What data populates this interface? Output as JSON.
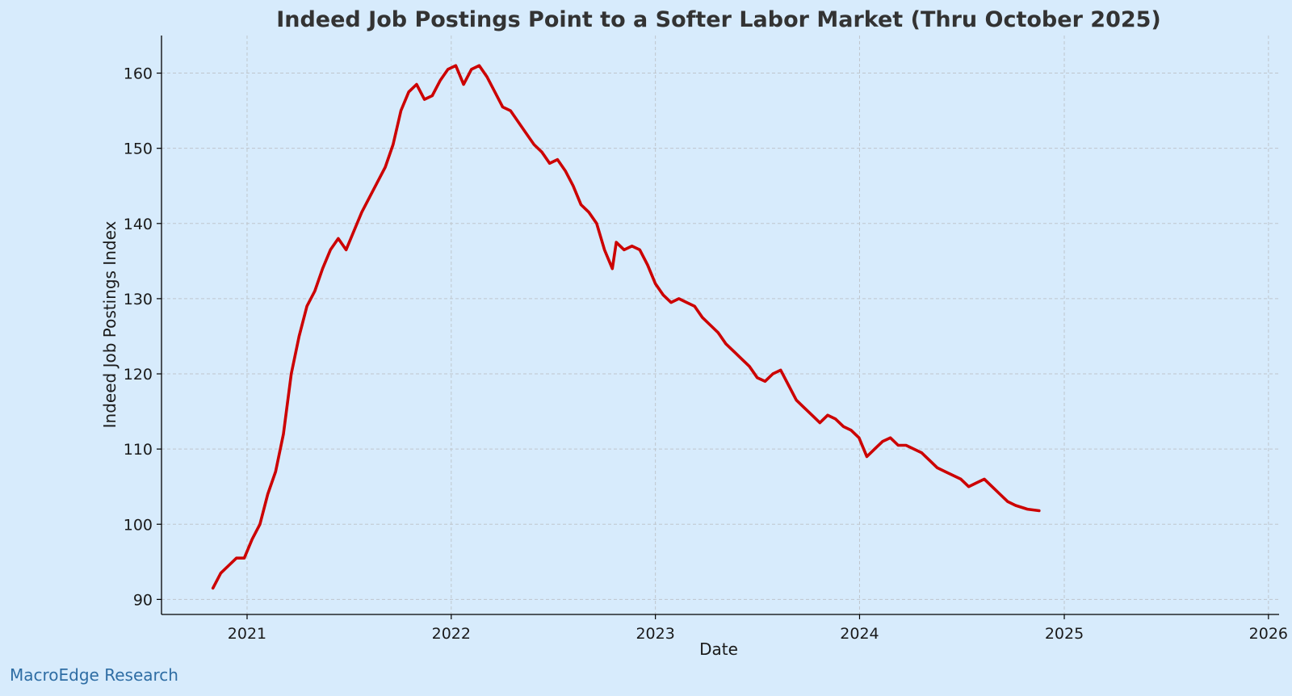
{
  "chart_data": {
    "type": "line",
    "title": "Indeed Job Postings Point to a Softer Labor Market (Thru October 2025)",
    "xlabel": "Date",
    "ylabel": "Indeed Job Postings Index",
    "xlim": [
      "2020-08-01",
      "2026-01-20"
    ],
    "ylim": [
      88,
      165
    ],
    "x_ticks": [
      "2021",
      "2022",
      "2023",
      "2024",
      "2025",
      "2026"
    ],
    "y_ticks": [
      90,
      100,
      110,
      120,
      130,
      140,
      150,
      160
    ],
    "grid": true,
    "legend": "none",
    "colors": {
      "background": "#d7ebfc",
      "series": "#cc0000"
    },
    "series": [
      {
        "points": [
          [
            "2020-11-01",
            91.5
          ],
          [
            "2020-11-15",
            93.5
          ],
          [
            "2020-11-29",
            94.5
          ],
          [
            "2020-12-13",
            95.5
          ],
          [
            "2020-12-27",
            95.5
          ],
          [
            "2021-01-10",
            98.0
          ],
          [
            "2021-01-24",
            100.0
          ],
          [
            "2021-02-07",
            104.0
          ],
          [
            "2021-02-21",
            107.0
          ],
          [
            "2021-03-07",
            112.0
          ],
          [
            "2021-03-21",
            120.0
          ],
          [
            "2021-04-04",
            125.0
          ],
          [
            "2021-04-18",
            129.0
          ],
          [
            "2021-05-02",
            131.0
          ],
          [
            "2021-05-16",
            134.0
          ],
          [
            "2021-05-30",
            136.5
          ],
          [
            "2021-06-13",
            138.0
          ],
          [
            "2021-06-27",
            136.5
          ],
          [
            "2021-07-11",
            139.0
          ],
          [
            "2021-07-25",
            141.5
          ],
          [
            "2021-08-08",
            143.5
          ],
          [
            "2021-08-22",
            145.5
          ],
          [
            "2021-09-05",
            147.5
          ],
          [
            "2021-09-19",
            150.5
          ],
          [
            "2021-10-03",
            155.0
          ],
          [
            "2021-10-17",
            157.5
          ],
          [
            "2021-10-31",
            158.5
          ],
          [
            "2021-11-14",
            156.5
          ],
          [
            "2021-11-28",
            157.0
          ],
          [
            "2021-12-12",
            159.0
          ],
          [
            "2021-12-26",
            160.5
          ],
          [
            "2022-01-09",
            161.0
          ],
          [
            "2022-01-23",
            158.5
          ],
          [
            "2022-02-06",
            160.5
          ],
          [
            "2022-02-20",
            161.0
          ],
          [
            "2022-03-06",
            159.5
          ],
          [
            "2022-03-20",
            157.5
          ],
          [
            "2022-04-03",
            155.5
          ],
          [
            "2022-04-17",
            155.0
          ],
          [
            "2022-05-01",
            153.5
          ],
          [
            "2022-05-15",
            152.0
          ],
          [
            "2022-05-29",
            150.5
          ],
          [
            "2022-06-12",
            149.5
          ],
          [
            "2022-06-26",
            148.0
          ],
          [
            "2022-07-10",
            148.5
          ],
          [
            "2022-07-24",
            147.0
          ],
          [
            "2022-08-07",
            145.0
          ],
          [
            "2022-08-21",
            142.5
          ],
          [
            "2022-09-04",
            141.5
          ],
          [
            "2022-09-18",
            140.0
          ],
          [
            "2022-10-02",
            136.5
          ],
          [
            "2022-10-16",
            134.0
          ],
          [
            "2022-10-23",
            137.5
          ],
          [
            "2022-11-06",
            136.5
          ],
          [
            "2022-11-20",
            137.0
          ],
          [
            "2022-12-04",
            136.5
          ],
          [
            "2022-12-18",
            134.5
          ],
          [
            "2023-01-01",
            132.0
          ],
          [
            "2023-01-15",
            130.5
          ],
          [
            "2023-01-29",
            129.5
          ],
          [
            "2023-02-12",
            130.0
          ],
          [
            "2023-02-26",
            129.5
          ],
          [
            "2023-03-12",
            129.0
          ],
          [
            "2023-03-26",
            127.5
          ],
          [
            "2023-04-09",
            126.5
          ],
          [
            "2023-04-23",
            125.5
          ],
          [
            "2023-05-07",
            124.0
          ],
          [
            "2023-05-21",
            123.0
          ],
          [
            "2023-06-04",
            122.0
          ],
          [
            "2023-06-18",
            121.0
          ],
          [
            "2023-07-02",
            119.5
          ],
          [
            "2023-07-16",
            119.0
          ],
          [
            "2023-07-30",
            120.0
          ],
          [
            "2023-08-13",
            120.5
          ],
          [
            "2023-08-27",
            118.5
          ],
          [
            "2023-09-10",
            116.5
          ],
          [
            "2023-09-24",
            115.5
          ],
          [
            "2023-10-08",
            114.5
          ],
          [
            "2023-10-22",
            113.5
          ],
          [
            "2023-11-05",
            114.5
          ],
          [
            "2023-11-19",
            114.0
          ],
          [
            "2023-12-03",
            113.0
          ],
          [
            "2023-12-17",
            112.5
          ],
          [
            "2023-12-31",
            111.5
          ],
          [
            "2024-01-14",
            109.0
          ],
          [
            "2024-01-28",
            110.0
          ],
          [
            "2024-02-11",
            111.0
          ],
          [
            "2024-02-25",
            111.5
          ],
          [
            "2024-03-10",
            110.5
          ],
          [
            "2024-03-24",
            110.5
          ],
          [
            "2024-04-07",
            110.0
          ],
          [
            "2024-04-21",
            109.5
          ],
          [
            "2024-05-05",
            108.5
          ],
          [
            "2024-05-19",
            107.5
          ],
          [
            "2024-06-02",
            107.0
          ],
          [
            "2024-06-16",
            106.5
          ],
          [
            "2024-06-30",
            106.0
          ],
          [
            "2024-07-14",
            105.0
          ],
          [
            "2024-07-28",
            105.5
          ],
          [
            "2024-08-11",
            106.0
          ],
          [
            "2024-08-25",
            105.0
          ],
          [
            "2024-09-08",
            104.0
          ],
          [
            "2024-09-22",
            103.0
          ],
          [
            "2024-10-06",
            102.5
          ],
          [
            "2024-10-27",
            102.0
          ],
          [
            "2024-11-17",
            101.8
          ]
        ]
      }
    ]
  },
  "footer": {
    "brand": "MacroEdge Research"
  }
}
